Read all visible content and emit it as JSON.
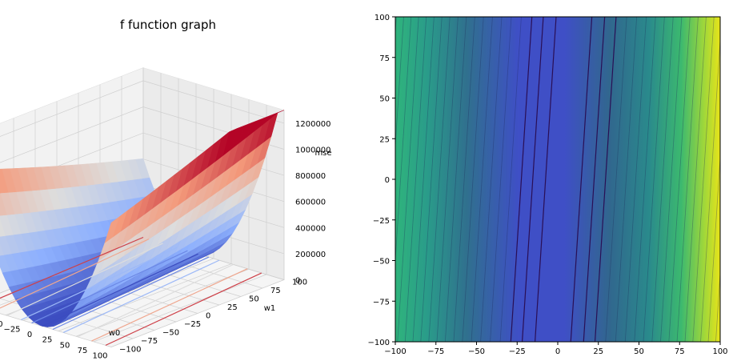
{
  "chart_data": [
    {
      "type": "surface",
      "title": "f function graph",
      "xlabel": "w0",
      "ylabel": "w1",
      "zlabel": "mse",
      "x_ticks": [
        "−100",
        "−75",
        "−50",
        "−25",
        "0",
        "25",
        "50",
        "75",
        "100"
      ],
      "y_ticks": [
        "−100",
        "−75",
        "−50",
        "−25",
        "0",
        "25",
        "50",
        "75",
        "100"
      ],
      "z_ticks": [
        "0",
        "200000",
        "400000",
        "600000",
        "800000",
        "1000000",
        "1200000"
      ],
      "xlim": [
        -100,
        100
      ],
      "ylim": [
        -100,
        100
      ],
      "zlim": [
        0,
        1300000
      ],
      "colormap": "coolwarm",
      "grid": true,
      "surface": {
        "description_formula": "mse ≈ (w0 + 0.12·w1 + 10)^2 scaled",
        "min_w0_at_w1_0": -10,
        "max_value": 1200000
      }
    },
    {
      "type": "contour",
      "title": "",
      "xlabel": "",
      "ylabel": "",
      "x_ticks": [
        "−100",
        "−75",
        "−50",
        "−25",
        "0",
        "25",
        "50",
        "75",
        "100"
      ],
      "y_ticks": [
        "−100",
        "−75",
        "−50",
        "−25",
        "0",
        "25",
        "50",
        "75",
        "100"
      ],
      "xlim": [
        -100,
        100
      ],
      "ylim": [
        -100,
        100
      ],
      "colormap": "viridis",
      "levels": 100,
      "valley": {
        "w0_at_top": 8,
        "w0_at_bottom": -5
      }
    }
  ],
  "colors": {
    "contour_low": "#3f4fc6",
    "contour_dark": "#2a0f55",
    "contour_high": "#e8e419"
  }
}
